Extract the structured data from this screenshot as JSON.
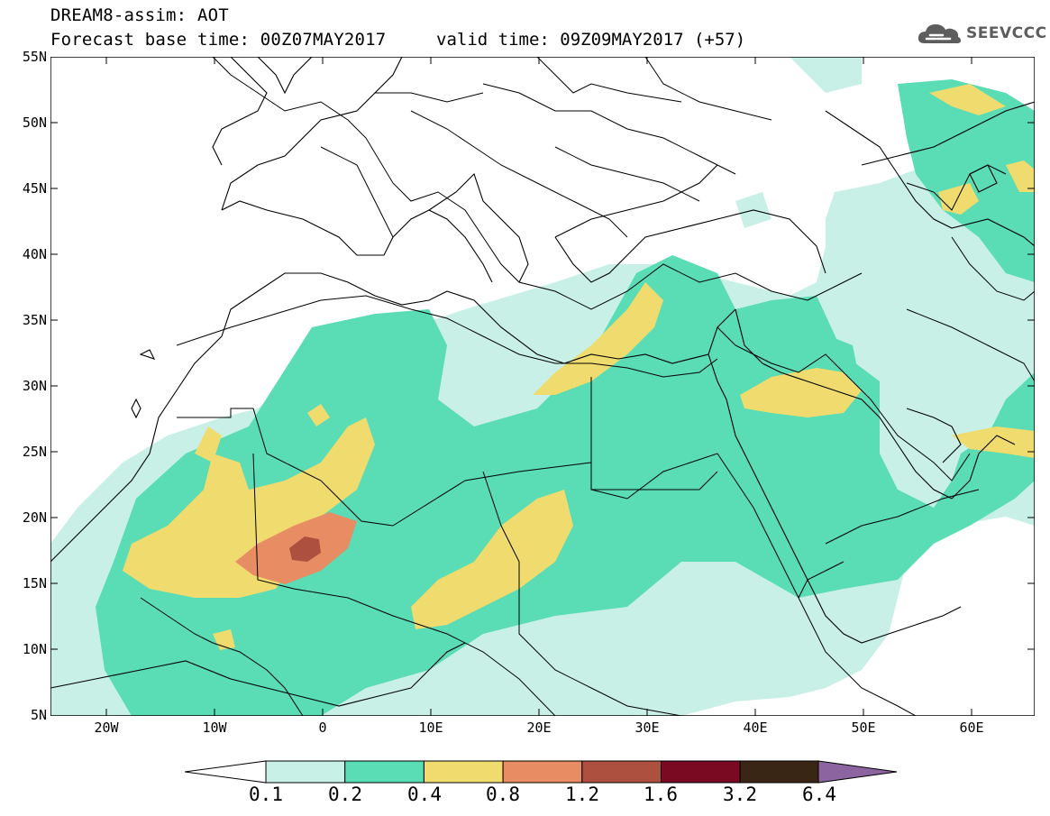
{
  "header": {
    "model_title": "DREAM8-assim: AOT",
    "base_time": "Forecast base time: 00Z07MAY2017",
    "valid_time": "valid time: 09Z09MAY2017 (+57)",
    "logo_text": "SEEVCCC"
  },
  "axes": {
    "lat_labels": [
      "55N",
      "50N",
      "45N",
      "40N",
      "35N",
      "30N",
      "25N",
      "20N",
      "15N",
      "10N",
      "5N"
    ],
    "lon_labels": [
      "20W",
      "10W",
      "0",
      "10E",
      "20E",
      "30E",
      "40E",
      "50E",
      "60E"
    ]
  },
  "legend": {
    "labels": [
      "0.1",
      "0.2",
      "0.4",
      "0.8",
      "1.2",
      "1.6",
      "3.2",
      "6.4"
    ],
    "colors": [
      "#c8f0e6",
      "#5adcb4",
      "#f0dc6e",
      "#e88c64",
      "#ae5040",
      "#7a0a22",
      "#3a2614",
      "#8c64a0"
    ]
  },
  "colors": {
    "level_01_02": "#c8f0e6",
    "level_02_04": "#5adcb4",
    "level_04_08": "#f0dc6e",
    "level_08_12": "#e88c64",
    "level_12_16": "#ae5040"
  }
}
